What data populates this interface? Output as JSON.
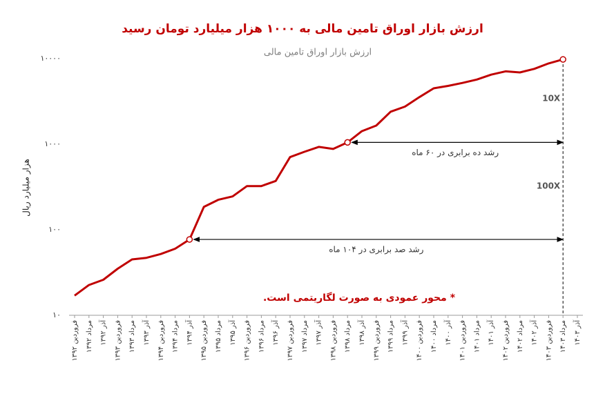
{
  "chart_data": {
    "type": "line",
    "log_scale": true,
    "title": "ارزش بازار اوراق تامین مالی به ۱۰۰۰ هزار میلیارد تومان رسید",
    "y_label": "هزار میلیارد ریال",
    "note": "* محور عمودی به صورت لگاریتمی است.",
    "categories": [
      "فروردین ۱۳۹۲",
      "مرداد ۱۳۹۲",
      "آذر ۱۳۹۲",
      "فروردین ۱۳۹۳",
      "مرداد ۱۳۹۳",
      "آذر ۱۳۹۳",
      "فروردین ۱۳۹۴",
      "مرداد ۱۳۹۴",
      "آذر ۱۳۹۴",
      "فروردین ۱۳۹۵",
      "مرداد ۱۳۹۵",
      "آذر ۱۳۹۵",
      "فروردین ۱۳۹۶",
      "مرداد ۱۳۹۶",
      "آذر ۱۳۹۶",
      "فروردین ۱۳۹۷",
      "مرداد ۱۳۹۷",
      "آذر ۱۳۹۷",
      "فروردین ۱۳۹۸",
      "مرداد ۱۳۹۸",
      "آذر ۱۳۹۸",
      "فروردین ۱۳۹۹",
      "مرداد ۱۳۹۹",
      "آذر ۱۳۹۹",
      "فروردین ۱۴۰۰",
      "مرداد ۱۴۰۰",
      "آذر ۱۴۰۰",
      "فروردین ۱۴۰۱",
      "مرداد ۱۴۰۱",
      "آذر ۱۴۰۱",
      "فروردین ۱۴۰۲",
      "مرداد ۱۴۰۲",
      "آذر ۱۴۰۲",
      "فروردین ۱۴۰۳",
      "مرداد ۱۴۰۳",
      "آذر ۱۴۰۳"
    ],
    "series": [
      {
        "name": "ارزش بازار اوراق تامین مالی",
        "color": "#c00000",
        "values": [
          17,
          22.6,
          26,
          35,
          45,
          47,
          52,
          60,
          77,
          185,
          224,
          245,
          324,
          324,
          372,
          707,
          815,
          930,
          880,
          1050,
          1420,
          1650,
          2400,
          2750,
          3550,
          4500,
          4800,
          5200,
          5700,
          6500,
          7100,
          6900,
          7600,
          8800,
          9800,
          null
        ]
      }
    ],
    "ylim": [
      10,
      10000
    ],
    "yticks": [
      {
        "value": 10,
        "label": "۱۰"
      },
      {
        "value": 100,
        "label": "۱۰۰"
      },
      {
        "value": 1000,
        "label": "۱۰۰۰"
      },
      {
        "value": 10000,
        "label": "۱۰۰۰۰"
      }
    ],
    "growth_spans": [
      {
        "factor": "10X",
        "label": "رشد ده برابری در ۶۰ ماه",
        "start": 19,
        "end": 34
      },
      {
        "factor": "100X",
        "label": "رشد صد برابری در ۱۰۴ ماه",
        "start": 8,
        "end": 34
      }
    ]
  }
}
